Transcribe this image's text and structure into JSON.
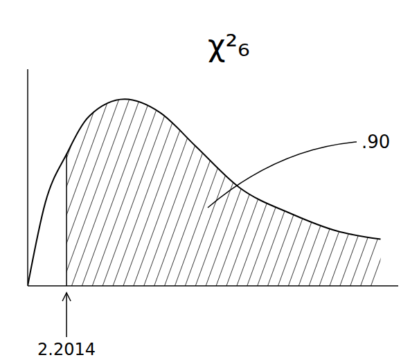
{
  "chart_data": {
    "type": "area",
    "title": "χ²₆",
    "x": [
      0,
      1,
      2.2014,
      3.5,
      5.5,
      7.5,
      9.5,
      12,
      15,
      17.5,
      20
    ],
    "values": [
      0,
      0.05,
      0.079,
      0.102,
      0.112,
      0.104,
      0.084,
      0.059,
      0.043,
      0.033,
      0.028
    ],
    "shade_from": 2.2014,
    "annotation": ".90",
    "xlim": [
      0,
      21
    ],
    "ylim": [
      0,
      0.13
    ],
    "xticks": [
      2.2014
    ],
    "tick_labels": "x",
    "grid": false,
    "color": "#000000"
  }
}
